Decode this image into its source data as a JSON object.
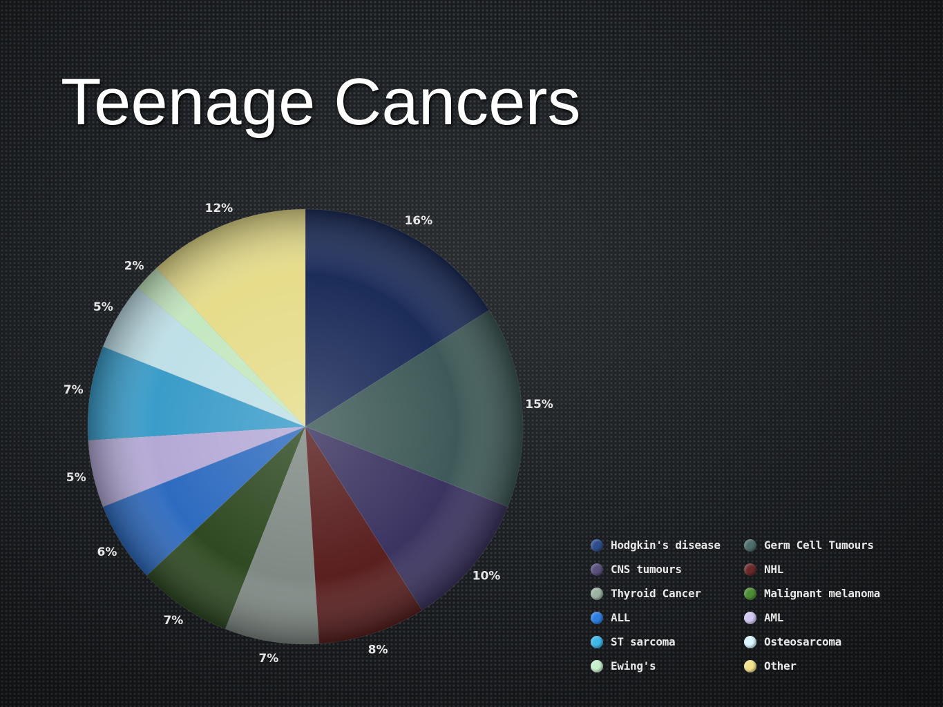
{
  "slide": {
    "title": "Teenage Cancers"
  },
  "chart_data": {
    "type": "pie",
    "title": "",
    "legend_position": "bottom-right",
    "slices": [
      {
        "label": "Hodgkin's disease",
        "value": 16,
        "display": "16%",
        "color": "#1d2d5a"
      },
      {
        "label": "Germ Cell Tumours",
        "value": 15,
        "display": "15%",
        "color": "#3e5a58"
      },
      {
        "label": "CNS tumours",
        "value": 10,
        "display": "10%",
        "color": "#3b3461"
      },
      {
        "label": "NHL",
        "value": 8,
        "display": "8%",
        "color": "#5a1f1f"
      },
      {
        "label": "Thyroid Cancer",
        "value": 7,
        "display": "7%",
        "color": "#808a85"
      },
      {
        "label": "Malignant melanoma",
        "value": 7,
        "display": "7%",
        "color": "#2f4a22"
      },
      {
        "label": "ALL",
        "value": 6,
        "display": "6%",
        "color": "#2e6bbf"
      },
      {
        "label": "AML",
        "value": 5,
        "display": "5%",
        "color": "#b4a9d6"
      },
      {
        "label": "ST sarcoma",
        "value": 7,
        "display": "7%",
        "color": "#3a9cc9"
      },
      {
        "label": "Osteosarcoma",
        "value": 5,
        "display": "5%",
        "color": "#bfe0e8"
      },
      {
        "label": "Ewing's",
        "value": 2,
        "display": "2%",
        "color": "#c4e8c0"
      },
      {
        "label": "Other",
        "value": 12,
        "display": "12%",
        "color": "#e6dc8a"
      }
    ],
    "legend": [
      {
        "label": "Hodgkin's disease",
        "color": "#2f4d8c"
      },
      {
        "label": "Germ Cell Tumours",
        "color": "#4e6e6b"
      },
      {
        "label": "CNS tumours",
        "color": "#5b527d"
      },
      {
        "label": "NHL",
        "color": "#6b2a2a"
      },
      {
        "label": "Thyroid Cancer",
        "color": "#9cb3a4"
      },
      {
        "label": "Malignant melanoma",
        "color": "#4f8c36"
      },
      {
        "label": "ALL",
        "color": "#2f7fe0"
      },
      {
        "label": "AML",
        "color": "#cfc7f0"
      },
      {
        "label": "ST sarcoma",
        "color": "#3fb8e8"
      },
      {
        "label": "Osteosarcoma",
        "color": "#d8f6ff"
      },
      {
        "label": "Ewing's",
        "color": "#c8f0cc"
      },
      {
        "label": "Other",
        "color": "#f2e38c"
      }
    ]
  }
}
